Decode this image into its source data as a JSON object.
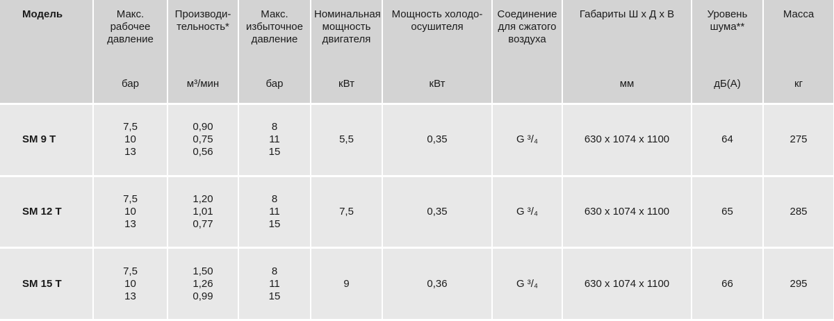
{
  "headers": [
    {
      "title": "Модель",
      "unit": ""
    },
    {
      "title": "Макс. рабочее давление",
      "unit": "бар"
    },
    {
      "title": "Производи-тельность*",
      "unit": "м³/мин"
    },
    {
      "title": "Макс. избыточное давление",
      "unit": "бар"
    },
    {
      "title": "Номинальная мощность двигателя",
      "unit": "кВт"
    },
    {
      "title": "Мощность холодо-осушителя",
      "unit": "кВт"
    },
    {
      "title": "Соединение для сжатого воздуха",
      "unit": ""
    },
    {
      "title": "Габариты Ш х Д х В",
      "unit": "мм"
    },
    {
      "title": "Уровень шума**",
      "unit": "дБ(А)"
    },
    {
      "title": "Масса",
      "unit": "кг"
    }
  ],
  "rows": [
    {
      "model": "SM 9 T",
      "pressure": [
        "7,5",
        "10",
        "13"
      ],
      "capacity": [
        "0,90",
        "0,75",
        "0,56"
      ],
      "overpressure": [
        "8",
        "11",
        "15"
      ],
      "motor_power": "5,5",
      "dryer_power": "0,35",
      "connection": "G ³/₄",
      "dimensions": "630 x 1074 x 1100",
      "noise": "64",
      "mass": "275"
    },
    {
      "model": "SM 12 T",
      "pressure": [
        "7,5",
        "10",
        "13"
      ],
      "capacity": [
        "1,20",
        "1,01",
        "0,77"
      ],
      "overpressure": [
        "8",
        "11",
        "15"
      ],
      "motor_power": "7,5",
      "dryer_power": "0,35",
      "connection": "G ³/₄",
      "dimensions": "630 x 1074 x 1100",
      "noise": "65",
      "mass": "285"
    },
    {
      "model": "SM 15 T",
      "pressure": [
        "7,5",
        "10",
        "13"
      ],
      "capacity": [
        "1,50",
        "1,26",
        "0,99"
      ],
      "overpressure": [
        "8",
        "11",
        "15"
      ],
      "motor_power": "9",
      "dryer_power": "0,36",
      "connection": "G ³/₄",
      "dimensions": "630 x 1074 x 1100",
      "noise": "66",
      "mass": "295"
    }
  ]
}
